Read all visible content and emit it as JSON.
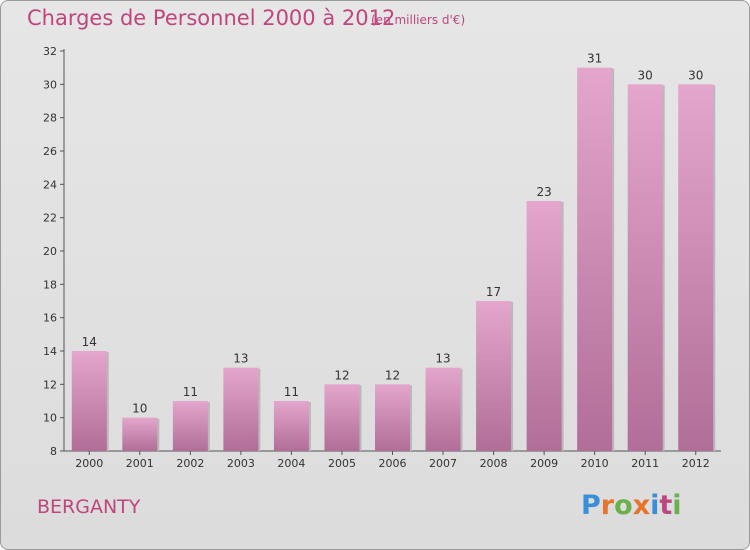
{
  "header": {
    "title": "Charges de Personnel 2000 à 2012",
    "subtitle": "(en milliers d'€)"
  },
  "footer": {
    "commune": "BERGANTY",
    "logo_text": "Proxiti",
    "logo_colors": [
      "#3b8fd8",
      "#e8732a",
      "#6ab04c",
      "#e8732a",
      "#3b8fd8",
      "#c0457e",
      "#6ab04c"
    ]
  },
  "colors": {
    "bar_light": "#e4a6cc",
    "bar_dark": "#b16e98",
    "accent": "#c0457e"
  },
  "chart_data": {
    "type": "bar",
    "categories": [
      "2000",
      "2001",
      "2002",
      "2003",
      "2004",
      "2005",
      "2006",
      "2007",
      "2008",
      "2009",
      "2010",
      "2011",
      "2012"
    ],
    "values": [
      14,
      10,
      11,
      13,
      11,
      12,
      12,
      13,
      17,
      23,
      31,
      30,
      30
    ],
    "title": "Charges de Personnel 2000 à 2012",
    "subtitle": "(en milliers d'€)",
    "xlabel": "",
    "ylabel": "",
    "ylim": [
      8,
      32
    ],
    "yticks": [
      8,
      10,
      12,
      14,
      16,
      18,
      20,
      22,
      24,
      26,
      28,
      30,
      32
    ],
    "grid": false,
    "legend": "none"
  }
}
